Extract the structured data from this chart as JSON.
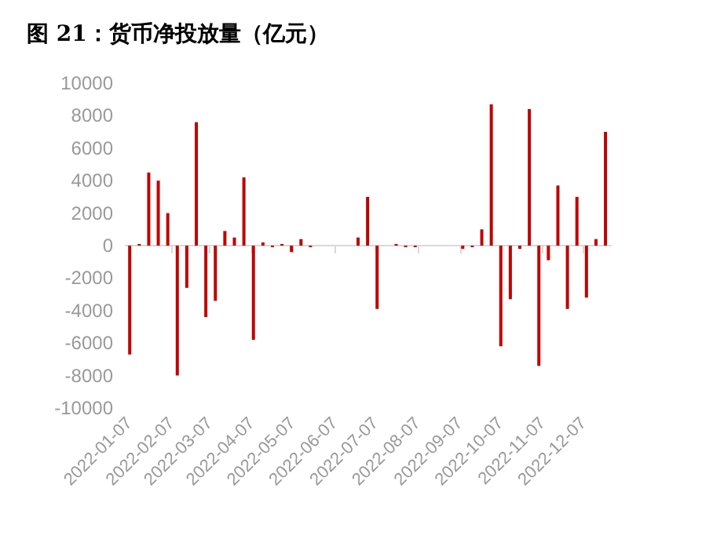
{
  "chart_data": {
    "type": "bar",
    "title": "图 21：货币净投放量（亿元）",
    "x": [
      "2022-01-07",
      "2022-01-14",
      "2022-01-21",
      "2022-01-28",
      "2022-02-04",
      "2022-02-11",
      "2022-02-18",
      "2022-02-25",
      "2022-03-04",
      "2022-03-11",
      "2022-03-18",
      "2022-03-25",
      "2022-04-01",
      "2022-04-08",
      "2022-04-15",
      "2022-04-22",
      "2022-04-29",
      "2022-05-06",
      "2022-05-13",
      "2022-05-20",
      "2022-05-27",
      "2022-06-03",
      "2022-06-10",
      "2022-06-17",
      "2022-06-24",
      "2022-07-01",
      "2022-07-08",
      "2022-07-15",
      "2022-07-22",
      "2022-07-29",
      "2022-08-05",
      "2022-08-12",
      "2022-08-19",
      "2022-08-26",
      "2022-09-02",
      "2022-09-09",
      "2022-09-16",
      "2022-09-23",
      "2022-09-30",
      "2022-10-07",
      "2022-10-14",
      "2022-10-21",
      "2022-10-28",
      "2022-11-04",
      "2022-11-11",
      "2022-11-18",
      "2022-11-25",
      "2022-12-02",
      "2022-12-09",
      "2022-12-16",
      "2022-12-23"
    ],
    "values": [
      -6700,
      100,
      4500,
      4000,
      2000,
      -8000,
      -2600,
      7600,
      -4400,
      -3400,
      900,
      500,
      4200,
      -5800,
      200,
      -100,
      100,
      -400,
      400,
      -100,
      0,
      0,
      0,
      0,
      500,
      3000,
      -3900,
      0,
      100,
      -100,
      -100,
      0,
      0,
      0,
      0,
      -200,
      -100,
      1000,
      8700,
      -6200,
      -3300,
      -200,
      8400,
      -7400,
      -900,
      3700,
      -3900,
      3000,
      -3200,
      400,
      7000
    ],
    "color": "#c00000",
    "xlim": [
      "2022-01-04",
      "2022-12-27"
    ],
    "xticks": [
      "2022-01-07",
      "2022-02-07",
      "2022-03-07",
      "2022-04-07",
      "2022-05-07",
      "2022-06-07",
      "2022-07-07",
      "2022-08-07",
      "2022-09-07",
      "2022-10-07",
      "2022-11-07",
      "2022-12-07"
    ],
    "ylim": [
      -10000,
      10000
    ],
    "yticks": [
      -10000,
      -8000,
      -6000,
      -4000,
      -2000,
      0,
      2000,
      4000,
      6000,
      8000,
      10000
    ]
  }
}
